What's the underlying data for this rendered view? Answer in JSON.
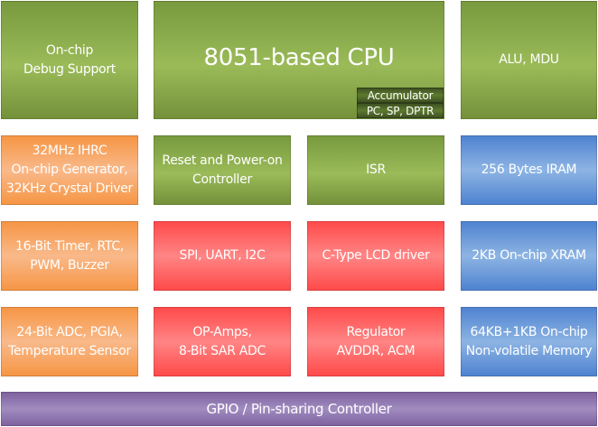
{
  "colors": {
    "green": "#9bbb59",
    "orange": "#f79646",
    "red": "#ff5f5f",
    "blue": "#6a9bd8",
    "purple": "#8f77b0"
  },
  "blocks": {
    "debug": "On-chip\nDebug Support",
    "cpu": "8051-based CPU",
    "accumulator": "Accumulator",
    "registers": "PC, SP, DPTR",
    "alu": "ALU, MDU",
    "clock": "32MHz IHRC\nOn-chip Generator,\n32KHz Crystal Driver",
    "reset": "Reset and Power-on\nController",
    "isr": "ISR",
    "iram": "256 Bytes IRAM",
    "timer": "16-Bit Timer, RTC,\nPWM, Buzzer",
    "serial": "SPI, UART, I2C",
    "lcd": "C-Type LCD driver",
    "xram": "2KB On-chip XRAM",
    "adc": "24-Bit ADC, PGIA,\nTemperature Sensor",
    "opamp": "OP-Amps,\n8-Bit SAR ADC",
    "regulator": "Regulator\nAVDDR, ACM",
    "nvm": "64KB+1KB On-chip\nNon-volatile Memory",
    "gpio": "GPIO / Pin-sharing Controller"
  }
}
